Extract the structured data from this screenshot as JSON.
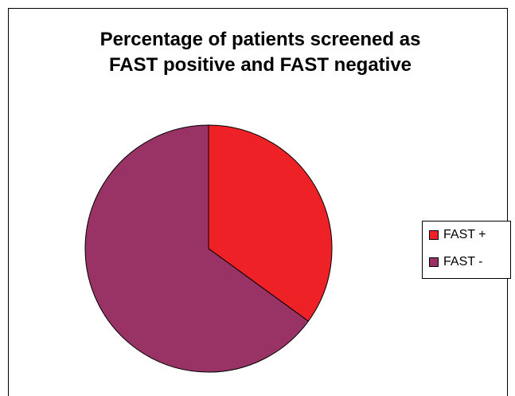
{
  "chart_data": {
    "type": "pie",
    "title": "Percentage of patients screened as FAST positive and FAST negative",
    "categories": [
      "FAST +",
      "FAST -"
    ],
    "values": [
      35,
      65
    ],
    "colors": [
      "#ee2226",
      "#993366"
    ],
    "legend": "right"
  }
}
